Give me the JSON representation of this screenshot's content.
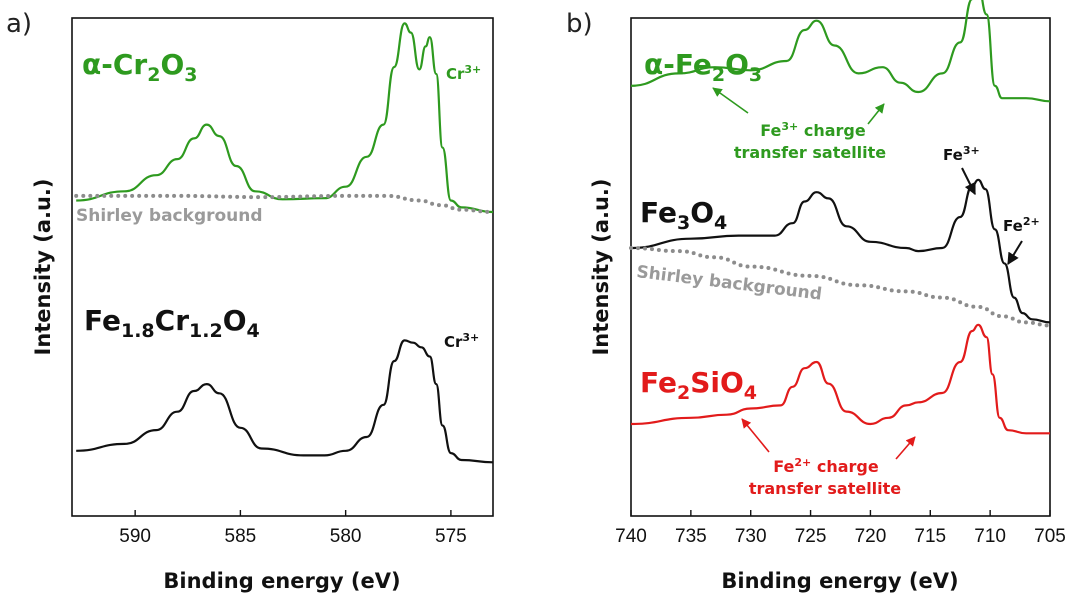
{
  "chart_data": [
    {
      "panel": "a)",
      "type": "line",
      "xlabel": "Binding energy (eV)",
      "ylabel": "Intensity (a.u.)",
      "xlim": [
        593,
        573
      ],
      "x_reversed": true,
      "xticks": [
        590,
        585,
        580,
        575
      ],
      "y_ticks_shown": false,
      "series": [
        {
          "name": "α-Cr2O3",
          "color": "#2e9a1f",
          "style": "solid",
          "points": [
            [
              592.8,
              0.05
            ],
            [
              590.5,
              0.09
            ],
            [
              589,
              0.16
            ],
            [
              588,
              0.23
            ],
            [
              587.2,
              0.32
            ],
            [
              586.6,
              0.38
            ],
            [
              586,
              0.33
            ],
            [
              585.2,
              0.2
            ],
            [
              584.3,
              0.09
            ],
            [
              583,
              0.055
            ],
            [
              581,
              0.06
            ],
            [
              580,
              0.11
            ],
            [
              579,
              0.24
            ],
            [
              578.2,
              0.38
            ],
            [
              577.7,
              0.63
            ],
            [
              577.2,
              0.82
            ],
            [
              576.9,
              0.78
            ],
            [
              576.5,
              0.62
            ],
            [
              576.2,
              0.72
            ],
            [
              576,
              0.76
            ],
            [
              575.7,
              0.6
            ],
            [
              575.4,
              0.28
            ],
            [
              575,
              0.05
            ],
            [
              574.5,
              0.02
            ],
            [
              573,
              0.0
            ]
          ]
        },
        {
          "name": "Shirley background",
          "color": "#8c8c8c",
          "style": "dotted",
          "points": [
            [
              592.8,
              0.07
            ],
            [
              588,
              0.07
            ],
            [
              584,
              0.065
            ],
            [
              580,
              0.07
            ],
            [
              578,
              0.07
            ],
            [
              576.5,
              0.05
            ],
            [
              575.5,
              0.03
            ],
            [
              574.5,
              0.01
            ],
            [
              573,
              0.0
            ]
          ]
        },
        {
          "name": "Fe1.8Cr1.2O4",
          "color": "#111111",
          "style": "solid",
          "points": [
            [
              592.8,
              0.04
            ],
            [
              590.5,
              0.07
            ],
            [
              589,
              0.13
            ],
            [
              588,
              0.21
            ],
            [
              587.2,
              0.3
            ],
            [
              586.6,
              0.33
            ],
            [
              586,
              0.29
            ],
            [
              585,
              0.14
            ],
            [
              584,
              0.05
            ],
            [
              582,
              0.02
            ],
            [
              581,
              0.02
            ],
            [
              580,
              0.04
            ],
            [
              579,
              0.1
            ],
            [
              578.2,
              0.24
            ],
            [
              577.7,
              0.43
            ],
            [
              577.2,
              0.52
            ],
            [
              576.8,
              0.51
            ],
            [
              576.4,
              0.49
            ],
            [
              576,
              0.45
            ],
            [
              575.7,
              0.33
            ],
            [
              575.4,
              0.15
            ],
            [
              575,
              0.03
            ],
            [
              574.5,
              0.0
            ],
            [
              573,
              -0.01
            ]
          ]
        }
      ],
      "labels": {
        "cr2o3_main": "α-Cr",
        "cr2o3_sub1": "2",
        "cr2o3_o": "O",
        "cr2o3_sub2": "3",
        "fecr_fe": "Fe",
        "fecr_sub1": "1.8",
        "fecr_cr": "Cr",
        "fecr_sub2": "1.2",
        "fecr_o": "O",
        "fecr_sub3": "4",
        "cr3_top": "Cr",
        "cr3_top_sup": "3+",
        "cr3_bottom": "Cr",
        "cr3_bottom_sup": "3+",
        "shirley": "Shirley background"
      }
    },
    {
      "panel": "b)",
      "type": "line",
      "xlabel": "Binding energy (eV)",
      "ylabel": "Intensity (a.u.)",
      "xlim": [
        740,
        705
      ],
      "x_reversed": true,
      "xticks": [
        740,
        735,
        730,
        725,
        720,
        715,
        710,
        705
      ],
      "y_ticks_shown": false,
      "series": [
        {
          "name": "α-Fe2O3",
          "color": "#2e9a1f",
          "style": "solid",
          "points": [
            [
              740,
              0.02
            ],
            [
              736,
              0.06
            ],
            [
              733,
              0.08
            ],
            [
              730,
              0.07
            ],
            [
              727,
              0.1
            ],
            [
              725.5,
              0.2
            ],
            [
              724.5,
              0.23
            ],
            [
              723,
              0.15
            ],
            [
              721,
              0.06
            ],
            [
              719,
              0.08
            ],
            [
              717.5,
              0.03
            ],
            [
              716,
              0.0
            ],
            [
              714,
              0.06
            ],
            [
              712.5,
              0.16
            ],
            [
              711.5,
              0.3
            ],
            [
              711,
              0.34
            ],
            [
              710.3,
              0.25
            ],
            [
              709.6,
              0.02
            ],
            [
              709,
              -0.02
            ],
            [
              707,
              -0.02
            ],
            [
              705,
              -0.03
            ]
          ]
        },
        {
          "name": "Fe3O4",
          "color": "#111111",
          "style": "solid",
          "points": [
            [
              740,
              0.0
            ],
            [
              735,
              0.03
            ],
            [
              731,
              0.04
            ],
            [
              728,
              0.04
            ],
            [
              726.5,
              0.08
            ],
            [
              725.5,
              0.15
            ],
            [
              724.5,
              0.18
            ],
            [
              723.5,
              0.16
            ],
            [
              722,
              0.07
            ],
            [
              720,
              0.02
            ],
            [
              717,
              0.0
            ],
            [
              716,
              -0.01
            ],
            [
              714,
              0.0
            ],
            [
              712.5,
              0.1
            ],
            [
              711.5,
              0.2
            ],
            [
              711,
              0.22
            ],
            [
              710.4,
              0.19
            ],
            [
              709.6,
              0.06
            ],
            [
              708.8,
              -0.05
            ],
            [
              708,
              -0.16
            ],
            [
              707.3,
              -0.21
            ],
            [
              706.5,
              -0.23
            ],
            [
              705,
              -0.24
            ]
          ]
        },
        {
          "name": "Shirley background",
          "color": "#8c8c8c",
          "style": "dotted",
          "points": [
            [
              740,
              0.0
            ],
            [
              736,
              -0.01
            ],
            [
              733,
              -0.03
            ],
            [
              730,
              -0.06
            ],
            [
              725,
              -0.09
            ],
            [
              721,
              -0.12
            ],
            [
              717,
              -0.14
            ],
            [
              714,
              -0.16
            ],
            [
              711,
              -0.19
            ],
            [
              709,
              -0.22
            ],
            [
              707,
              -0.24
            ],
            [
              705,
              -0.25
            ]
          ]
        },
        {
          "name": "Fe2SiO4",
          "color": "#e21b1b",
          "style": "solid",
          "points": [
            [
              740,
              0.0
            ],
            [
              735,
              0.02
            ],
            [
              732,
              0.03
            ],
            [
              730,
              0.05
            ],
            [
              727.5,
              0.06
            ],
            [
              726.5,
              0.12
            ],
            [
              725.5,
              0.18
            ],
            [
              724.5,
              0.2
            ],
            [
              723.5,
              0.13
            ],
            [
              722,
              0.04
            ],
            [
              720,
              0.0
            ],
            [
              718.5,
              0.02
            ],
            [
              717,
              0.06
            ],
            [
              716,
              0.07
            ],
            [
              714,
              0.1
            ],
            [
              712.5,
              0.2
            ],
            [
              711.5,
              0.3
            ],
            [
              711,
              0.32
            ],
            [
              710.3,
              0.28
            ],
            [
              709.8,
              0.16
            ],
            [
              709.2,
              0.02
            ],
            [
              708.5,
              -0.02
            ],
            [
              707,
              -0.03
            ],
            [
              705,
              -0.03
            ]
          ]
        }
      ],
      "labels": {
        "fe2o3_main": "α-Fe",
        "fe2o3_sub1": "2",
        "fe2o3_o": "O",
        "fe2o3_sub2": "3",
        "fe3o4_fe": "Fe",
        "fe3o4_sub1": "3",
        "fe3o4_o": "O",
        "fe3o4_sub2": "4",
        "fe2sio4_fe": "Fe",
        "fe2sio4_sub1": "2",
        "fe2sio4_rest": "SiO",
        "fe2sio4_sub2": "4",
        "fe3_sat_fe": "Fe",
        "fe3_sat_sup": "3+",
        "fe3_sat_rest": " charge",
        "fe3_sat_line2": "transfer satellite",
        "fe2_sat_fe": "Fe",
        "fe2_sat_sup": "2+",
        "fe2_sat_rest": " charge",
        "fe2_sat_line2": "transfer satellite",
        "fe3_marker": "Fe",
        "fe3_marker_sup": "3+",
        "fe2_marker": "Fe",
        "fe2_marker_sup": "2+",
        "shirley": "Shirley background"
      }
    }
  ]
}
